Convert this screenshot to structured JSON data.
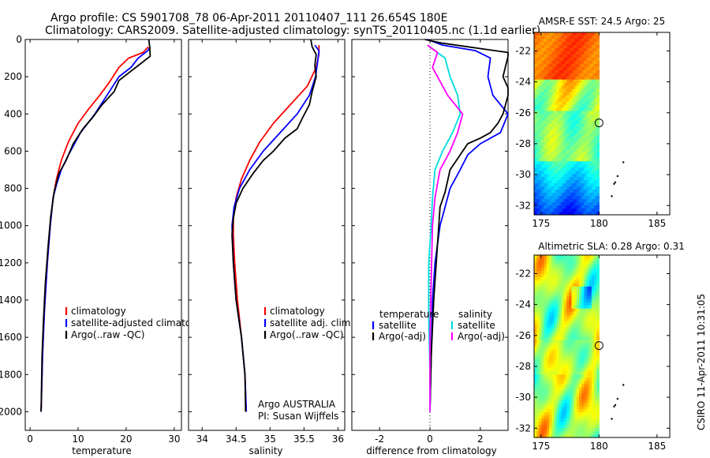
{
  "title_line1": "Argo profile: CS 5901708_78 06-Apr-2011 20110407_111 26.654S 180E",
  "title_line2": "Climatology: CARS2009. Satellite-adjusted climatology: synTS_20110405.nc (1.1d earlier)",
  "side_label": "CSIRO 11-Apr-2011 10:31:05",
  "chart_data": [
    {
      "type": "line",
      "xlabel": "temperature",
      "xlim": [
        -1,
        31.5
      ],
      "ylim": [
        2100,
        0
      ],
      "y_reversed": true,
      "xticks": [
        0,
        10,
        20,
        30
      ],
      "yticks": [
        0,
        200,
        400,
        600,
        800,
        1000,
        1200,
        1400,
        1600,
        1800,
        2000
      ],
      "legend": [
        "climatology",
        "satellite-adjusted climatology",
        "Argo(..raw -QC)"
      ],
      "series": [
        {
          "name": "climatology",
          "color": "#ff0000",
          "points": [
            [
              24.6,
              40
            ],
            [
              23.5,
              70
            ],
            [
              20.5,
              100
            ],
            [
              18.5,
              150
            ],
            [
              16.5,
              230
            ],
            [
              14.5,
              300
            ],
            [
              12,
              380
            ],
            [
              10,
              450
            ],
            [
              8,
              550
            ],
            [
              6.5,
              650
            ],
            [
              5.5,
              750
            ],
            [
              4.8,
              850
            ],
            [
              4.2,
              1000
            ],
            [
              3.6,
              1200
            ],
            [
              3,
              1450
            ],
            [
              2.6,
              1700
            ],
            [
              2.3,
              2000
            ]
          ]
        },
        {
          "name": "satellite-adjusted climatology",
          "color": "#0000ff",
          "points": [
            [
              25,
              40
            ],
            [
              24.5,
              60
            ],
            [
              22.5,
              100
            ],
            [
              21,
              150
            ],
            [
              18.5,
              200
            ],
            [
              16,
              300
            ],
            [
              13.5,
              400
            ],
            [
              10.5,
              500
            ],
            [
              8,
              620
            ],
            [
              6.5,
              700
            ],
            [
              5.5,
              780
            ],
            [
              4.8,
              850
            ],
            [
              4.2,
              1000
            ],
            [
              3.6,
              1200
            ],
            [
              3,
              1450
            ],
            [
              2.6,
              1700
            ],
            [
              2.3,
              2000
            ]
          ]
        },
        {
          "name": "Argo(..raw -QC)",
          "color": "#000000",
          "points": [
            [
              24.7,
              0
            ],
            [
              24.9,
              40
            ],
            [
              25,
              90
            ],
            [
              22.5,
              140
            ],
            [
              21.5,
              160
            ],
            [
              18.5,
              220
            ],
            [
              17.5,
              280
            ],
            [
              15,
              350
            ],
            [
              13,
              420
            ],
            [
              11,
              480
            ],
            [
              9,
              560
            ],
            [
              7.5,
              650
            ],
            [
              6,
              720
            ],
            [
              5,
              820
            ],
            [
              4.3,
              950
            ],
            [
              3.8,
              1100
            ],
            [
              3.2,
              1300
            ],
            [
              2.8,
              1500
            ],
            [
              2.5,
              1700
            ],
            [
              2.3,
              2000
            ]
          ]
        }
      ]
    },
    {
      "type": "line",
      "xlabel": "salinity",
      "xlim": [
        33.8,
        36.1
      ],
      "ylim": [
        2100,
        0
      ],
      "y_reversed": true,
      "xticks": [
        34,
        34.5,
        35,
        35.5,
        36
      ],
      "legend": [
        "climatology",
        "satellite adj. clim.",
        "Argo(..raw -QC)"
      ],
      "annotation": [
        "Argo AUSTRALIA",
        "PI: Susan Wijffels"
      ],
      "series": [
        {
          "name": "climatology",
          "color": "#ff0000",
          "points": [
            [
              35.72,
              30
            ],
            [
              35.72,
              80
            ],
            [
              35.68,
              150
            ],
            [
              35.55,
              250
            ],
            [
              35.3,
              350
            ],
            [
              35.05,
              450
            ],
            [
              34.85,
              550
            ],
            [
              34.7,
              650
            ],
            [
              34.58,
              750
            ],
            [
              34.5,
              850
            ],
            [
              34.46,
              950
            ],
            [
              34.46,
              1050
            ],
            [
              34.48,
              1200
            ],
            [
              34.52,
              1400
            ],
            [
              34.58,
              1600
            ],
            [
              34.63,
              1800
            ],
            [
              34.65,
              2000
            ]
          ]
        },
        {
          "name": "satellite adj. clim.",
          "color": "#0000ff",
          "points": [
            [
              35.66,
              30
            ],
            [
              35.72,
              60
            ],
            [
              35.7,
              120
            ],
            [
              35.67,
              200
            ],
            [
              35.58,
              300
            ],
            [
              35.4,
              400
            ],
            [
              35.15,
              500
            ],
            [
              34.9,
              600
            ],
            [
              34.7,
              700
            ],
            [
              34.55,
              800
            ],
            [
              34.47,
              900
            ],
            [
              34.44,
              1000
            ],
            [
              34.46,
              1200
            ],
            [
              34.5,
              1400
            ],
            [
              34.58,
              1600
            ],
            [
              34.63,
              1800
            ],
            [
              34.65,
              2000
            ]
          ]
        },
        {
          "name": "Argo(..raw -QC)",
          "color": "#000000",
          "points": [
            [
              35.6,
              0
            ],
            [
              35.62,
              40
            ],
            [
              35.68,
              80
            ],
            [
              35.66,
              140
            ],
            [
              35.68,
              200
            ],
            [
              35.62,
              280
            ],
            [
              35.58,
              350
            ],
            [
              35.48,
              420
            ],
            [
              35.4,
              480
            ],
            [
              35.22,
              530
            ],
            [
              35.05,
              600
            ],
            [
              34.9,
              650
            ],
            [
              34.75,
              720
            ],
            [
              34.6,
              800
            ],
            [
              34.5,
              880
            ],
            [
              34.46,
              960
            ],
            [
              34.44,
              1050
            ],
            [
              34.46,
              1200
            ],
            [
              34.5,
              1400
            ],
            [
              34.58,
              1600
            ],
            [
              34.63,
              1800
            ],
            [
              34.64,
              2000
            ]
          ]
        }
      ]
    },
    {
      "type": "line",
      "xlabel": "difference from climatology",
      "xlim": [
        -3.1,
        3.1
      ],
      "ylim": [
        2100,
        0
      ],
      "y_reversed": true,
      "xticks": [
        -2,
        0,
        2
      ],
      "legend_temperature": [
        "temperature",
        "satellite",
        "Argo(-adj)"
      ],
      "legend_salinity": [
        "salinity",
        "satellite",
        "Argo(-adj)"
      ],
      "series": [
        {
          "name": "temperature satellite",
          "color": "#0000ff",
          "points": [
            [
              -0.1,
              0
            ],
            [
              0.5,
              30
            ],
            [
              1.8,
              60
            ],
            [
              2.4,
              100
            ],
            [
              2.3,
              200
            ],
            [
              2.5,
              300
            ],
            [
              3.1,
              400
            ],
            [
              2.8,
              500
            ],
            [
              2,
              560
            ],
            [
              1.5,
              620
            ],
            [
              1.2,
              700
            ],
            [
              0.8,
              800
            ],
            [
              0.6,
              900
            ],
            [
              0.4,
              1000
            ],
            [
              0.2,
              1200
            ],
            [
              0.1,
              1400
            ],
            [
              0.05,
              1700
            ],
            [
              0,
              2000
            ]
          ]
        },
        {
          "name": "temperature Argo(-adj)",
          "color": "#000000",
          "points": [
            [
              -0.2,
              0
            ],
            [
              0.5,
              20
            ],
            [
              3.1,
              70
            ],
            [
              3.1,
              90
            ],
            [
              2.9,
              200
            ],
            [
              3.1,
              260
            ],
            [
              3.1,
              300
            ],
            [
              2.9,
              400
            ],
            [
              2.7,
              450
            ],
            [
              2.4,
              500
            ],
            [
              2,
              530
            ],
            [
              1.5,
              560
            ],
            [
              1.2,
              620
            ],
            [
              0.8,
              700
            ],
            [
              0.6,
              820
            ],
            [
              0.4,
              900
            ],
            [
              0.3,
              1100
            ],
            [
              0.15,
              1400
            ],
            [
              0.05,
              1700
            ],
            [
              0,
              2000
            ]
          ]
        },
        {
          "name": "salinity satellite",
          "color": "#00dddd",
          "points": [
            [
              -0.1,
              30
            ],
            [
              0.2,
              60
            ],
            [
              0.6,
              100
            ],
            [
              0.8,
              200
            ],
            [
              1.1,
              300
            ],
            [
              1.2,
              400
            ],
            [
              0.9,
              500
            ],
            [
              0.5,
              600
            ],
            [
              0.2,
              700
            ],
            [
              0.1,
              850
            ],
            [
              0.05,
              1000
            ],
            [
              -0.05,
              1200
            ],
            [
              -0.05,
              1500
            ],
            [
              0,
              1800
            ],
            [
              0,
              2000
            ]
          ]
        },
        {
          "name": "salinity Argo(-adj)",
          "color": "#ff00ff",
          "points": [
            [
              -0.1,
              30
            ],
            [
              0.3,
              70
            ],
            [
              0.1,
              150
            ],
            [
              0.3,
              200
            ],
            [
              0.7,
              300
            ],
            [
              1.3,
              400
            ],
            [
              1.1,
              500
            ],
            [
              0.8,
              600
            ],
            [
              0.4,
              700
            ],
            [
              0.2,
              850
            ],
            [
              0.1,
              1000
            ],
            [
              0.05,
              1300
            ],
            [
              0,
              1600
            ],
            [
              0,
              2000
            ]
          ]
        }
      ]
    },
    {
      "type": "heatmap",
      "title": "AMSR-E SST: 24.5 Argo: 25",
      "xlim": [
        174.4,
        186.1
      ],
      "ylim": [
        -32.6,
        -20.8
      ],
      "xticks": [
        175,
        180,
        185
      ],
      "yticks": [
        -32,
        -30,
        -28,
        -26,
        -24,
        -22
      ],
      "argo_position": [
        180,
        -26.654
      ]
    },
    {
      "type": "heatmap",
      "title": "Altimetric SLA: 0.28 Argo: 0.31",
      "xlim": [
        174.4,
        186.1
      ],
      "ylim": [
        -32.6,
        -20.8
      ],
      "xticks": [
        175,
        180,
        185
      ],
      "yticks": [
        -32,
        -30,
        -28,
        -26,
        -24,
        -22
      ],
      "argo_position": [
        180,
        -26.654
      ]
    }
  ]
}
